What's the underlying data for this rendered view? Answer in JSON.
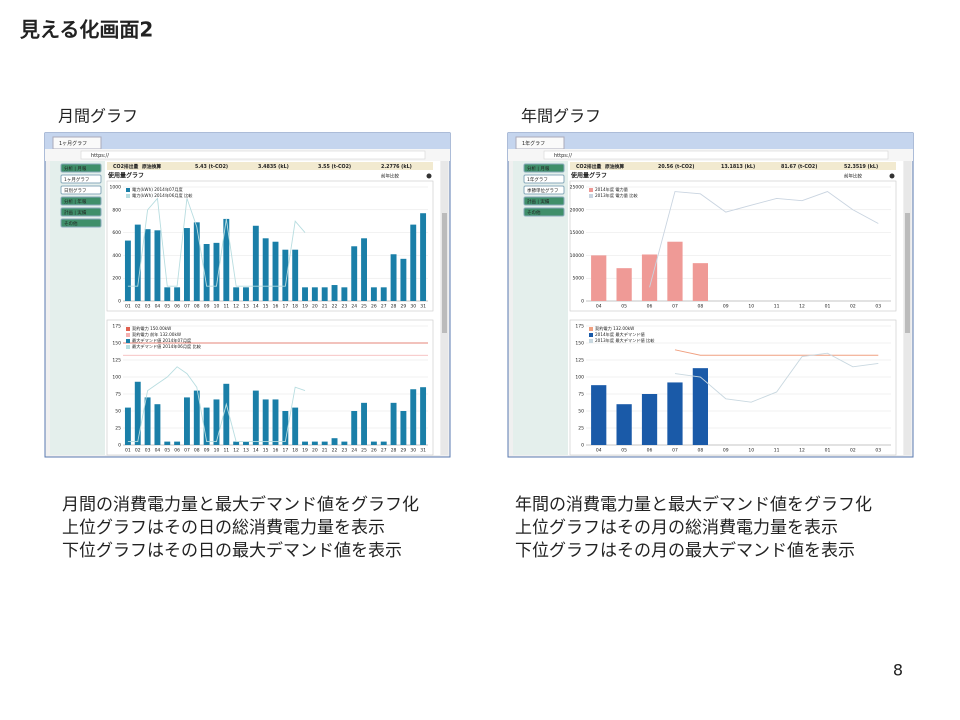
{
  "title": "見える化画面2",
  "page_number": "8",
  "panels": [
    {
      "caption": "月間グラフ",
      "tab": "1ヶ月グラフ",
      "url": "https://",
      "sidebar": [
        "分析 | 月報",
        "1ヶ月グラフ",
        "日別グラフ",
        "分析 | 年報",
        "計画 | 実績",
        "その他"
      ],
      "stats": [
        "CO2排出量",
        "原油換算",
        "5.43 (t-CO2)",
        "3.4835 (kL)",
        "3.55 (t-CO2)",
        "2.2776 (kL)"
      ],
      "graph_title": "使用量グラフ",
      "checkbox": "前年比較",
      "charts": [
        {
          "type": "bar",
          "categories": [
            "01",
            "02",
            "03",
            "04",
            "05",
            "06",
            "07",
            "08",
            "09",
            "10",
            "11",
            "12",
            "13",
            "14",
            "15",
            "16",
            "17",
            "18",
            "19",
            "20",
            "21",
            "22",
            "23",
            "24",
            "25",
            "26",
            "27",
            "28",
            "29",
            "30",
            "31"
          ],
          "ylim": [
            0,
            1000
          ],
          "yticks": [
            0,
            200,
            400,
            600,
            800,
            1000
          ],
          "grid": true,
          "series": [
            {
              "name": "電力(kWh) 2014年07月度",
              "type": "bar",
              "color": "#1a7fa8",
              "values": [
                530,
                670,
                630,
                620,
                120,
                120,
                640,
                690,
                500,
                510,
                720,
                120,
                120,
                660,
                550,
                520,
                450,
                450,
                120,
                120,
                120,
                140,
                120,
                480,
                550,
                120,
                120,
                410,
                370,
                670,
                770
              ]
            },
            {
              "name": "電力(kWh) 2014年06月度 比較",
              "type": "line",
              "color": "#b8dde0",
              "values": [
                130,
                130,
                800,
                900,
                130,
                130,
                900,
                650,
                130,
                130,
                720,
                130,
                130,
                130,
                130,
                130,
                130,
                700,
                600,
                null,
                null,
                null,
                null,
                null,
                null,
                null,
                null,
                null,
                null,
                null,
                null
              ]
            }
          ]
        },
        {
          "type": "bar",
          "categories": [
            "01",
            "02",
            "03",
            "04",
            "05",
            "06",
            "07",
            "08",
            "09",
            "10",
            "11",
            "12",
            "13",
            "14",
            "15",
            "16",
            "17",
            "18",
            "19",
            "20",
            "21",
            "22",
            "23",
            "24",
            "25",
            "26",
            "27",
            "28",
            "29",
            "30",
            "31"
          ],
          "ylim": [
            0,
            175
          ],
          "yticks": [
            0,
            25,
            50,
            75,
            100,
            125,
            150,
            175
          ],
          "grid": true,
          "reference_lines": [
            {
              "name": "契約電力 150.00kW",
              "value": 150,
              "color": "#e06050"
            },
            {
              "name": "契約電力 前年 132.00kW",
              "value": 132,
              "color": "#f4b0b0"
            }
          ],
          "series": [
            {
              "name": "最大デマンド値 2014年07月度",
              "type": "bar",
              "color": "#1a7fa8",
              "values": [
                55,
                93,
                70,
                60,
                5,
                5,
                70,
                80,
                55,
                67,
                90,
                5,
                5,
                80,
                67,
                67,
                50,
                55,
                5,
                5,
                5,
                10,
                5,
                50,
                62,
                5,
                5,
                62,
                50,
                82,
                85
              ]
            },
            {
              "name": "最大デマンド値 2014年06月度 比較",
              "type": "line",
              "color": "#b8dde0",
              "values": [
                5,
                5,
                80,
                90,
                100,
                115,
                105,
                85,
                5,
                5,
                60,
                5,
                5,
                5,
                5,
                5,
                5,
                85,
                80,
                null,
                null,
                null,
                null,
                null,
                null,
                null,
                null,
                null,
                null,
                null,
                null
              ]
            }
          ]
        }
      ],
      "notes": [
        "月間の消費電力量と最大デマンド値をグラフ化",
        "上位グラフはその日の総消費電力量を表示",
        "下位グラフはその日の最大デマンド値を表示"
      ]
    },
    {
      "caption": "年間グラフ",
      "tab": "1年グラフ",
      "url": "https://",
      "sidebar": [
        "分析 | 月報",
        "1年グラフ",
        "季節単位グラフ",
        "計画 | 実績",
        "その他"
      ],
      "stats": [
        "CO2排出量",
        "原油換算",
        "20.56 (t-CO2)",
        "13.1813 (kL)",
        "81.67 (t-CO2)",
        "52.3519 (kL)"
      ],
      "graph_title": "使用量グラフ",
      "checkbox": "前年比較",
      "charts": [
        {
          "type": "bar",
          "categories": [
            "04",
            "05",
            "06",
            "07",
            "08",
            "09",
            "10",
            "11",
            "12",
            "01",
            "02",
            "03"
          ],
          "ylim": [
            0,
            25000
          ],
          "yticks": [
            0,
            5000,
            10000,
            15000,
            20000,
            25000
          ],
          "grid": true,
          "series": [
            {
              "name": "2014年度 電力量",
              "type": "bar",
              "color": "#ef9a96",
              "values": [
                10000,
                7200,
                10200,
                13000,
                8300,
                null,
                null,
                null,
                null,
                null,
                null,
                null
              ]
            },
            {
              "name": "2013年度 電力量 比較",
              "type": "line",
              "color": "#c9d4e0",
              "values": [
                null,
                null,
                3000,
                24000,
                23500,
                19500,
                21000,
                22500,
                22000,
                24000,
                20000,
                17000
              ]
            }
          ]
        },
        {
          "type": "bar",
          "categories": [
            "04",
            "05",
            "06",
            "07",
            "08",
            "09",
            "10",
            "11",
            "12",
            "01",
            "02",
            "03"
          ],
          "ylim": [
            0,
            175
          ],
          "yticks": [
            0,
            25,
            50,
            75,
            100,
            125,
            150,
            175
          ],
          "grid": true,
          "series": [
            {
              "name": "契約電力 132.00kW",
              "type": "line",
              "color": "#f0a080",
              "values": [
                null,
                null,
                null,
                140,
                132,
                132,
                132,
                132,
                132,
                132,
                132,
                132
              ]
            },
            {
              "name": "2014年度 最大デマンド値",
              "type": "bar",
              "color": "#1a5aa8",
              "values": [
                88,
                60,
                75,
                92,
                113,
                null,
                null,
                null,
                null,
                null,
                null,
                null
              ]
            },
            {
              "name": "2013年度 最大デマンド値 比較",
              "type": "line",
              "color": "#c9d8e0",
              "values": [
                null,
                null,
                null,
                105,
                100,
                68,
                63,
                78,
                130,
                135,
                115,
                120
              ]
            }
          ]
        }
      ],
      "notes": [
        "年間の消費電力量と最大デマンド値をグラフ化",
        "上位グラフはその月の総消費電力量を表示",
        "下位グラフはその月の最大デマンド値を表示"
      ]
    }
  ]
}
